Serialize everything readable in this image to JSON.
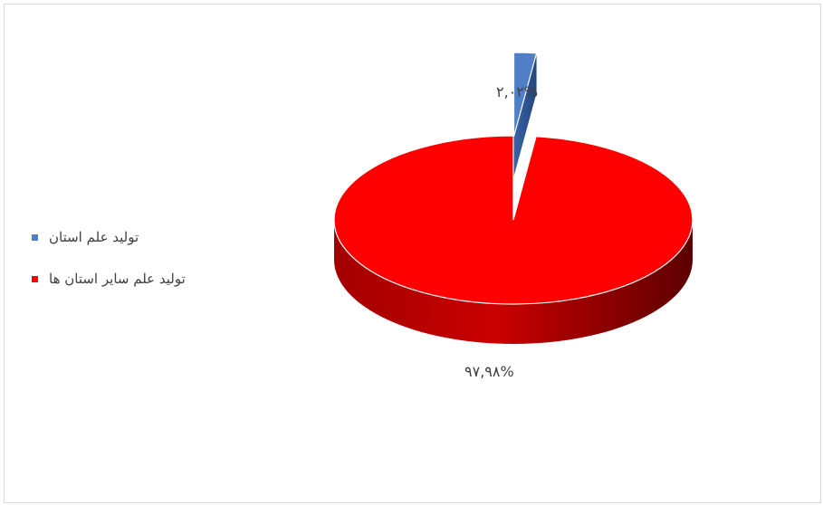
{
  "chart_data": {
    "type": "pie",
    "style": "3d",
    "categories": [
      "تولید علم استان",
      "تولید علم سایر استان ها"
    ],
    "values": [
      2.02,
      97.98
    ],
    "data_labels": [
      "۲,۰۲%",
      "۹۷,۹۸%"
    ],
    "colors": [
      "#4f7fc7",
      "#ff0000"
    ],
    "legend_position": "left"
  }
}
